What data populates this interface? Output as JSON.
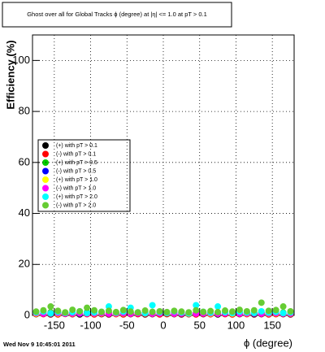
{
  "chart_data": {
    "type": "scatter",
    "title": "Ghost over all for Global Tracks ϕ (degree) at |η| <= 1.0 at pT > 0.1",
    "xlabel": "ϕ (degree)",
    "ylabel": "Efficiency (%)",
    "timestamp": "Wed Nov  9 10:45:01 2011",
    "x": [
      -175,
      -165,
      -155,
      -145,
      -135,
      -125,
      -115,
      -105,
      -95,
      -85,
      -75,
      -65,
      -55,
      -45,
      -35,
      -25,
      -15,
      -5,
      5,
      15,
      25,
      35,
      45,
      55,
      65,
      75,
      85,
      95,
      105,
      115,
      125,
      135,
      145,
      155,
      165,
      175
    ],
    "xlim": [
      -180,
      180
    ],
    "xticks": [
      -150,
      -100,
      -50,
      0,
      50,
      100,
      150
    ],
    "ylim": [
      0,
      110
    ],
    "yticks": [
      0,
      20,
      40,
      60,
      80,
      100
    ],
    "grid": true,
    "series": [
      {
        "name": "(+) with pT > 0.1",
        "color": "#000000",
        "values": [
          0.5,
          0.6,
          0.4,
          0.5,
          0.6,
          0.5,
          0.4,
          0.6,
          0.5,
          0.5,
          0.4,
          0.6,
          0.5,
          0.5,
          0.6,
          0.4,
          0.5,
          0.5,
          0.6,
          0.5,
          0.4,
          0.5,
          0.6,
          0.5,
          0.5,
          0.4,
          0.6,
          0.5,
          0.5,
          0.6,
          0.4,
          0.5,
          0.5,
          0.6,
          0.5,
          0.4
        ]
      },
      {
        "name": "(-) with pT > 0.1",
        "color": "#ff0000",
        "values": [
          0.6,
          0.5,
          0.5,
          0.4,
          0.6,
          0.5,
          0.6,
          0.5,
          0.4,
          0.6,
          0.5,
          0.5,
          0.4,
          0.6,
          0.5,
          0.5,
          0.6,
          0.4,
          0.5,
          0.6,
          0.5,
          0.5,
          0.4,
          0.6,
          0.5,
          0.6,
          0.5,
          0.4,
          0.6,
          0.5,
          0.5,
          0.6,
          0.4,
          0.5,
          0.6,
          0.5
        ]
      },
      {
        "name": "(+) with pT > 0.5",
        "color": "#00cc00",
        "values": [
          1.0,
          0.8,
          1.2,
          0.9,
          1.0,
          1.1,
          0.8,
          1.2,
          1.0,
          0.9,
          1.1,
          1.0,
          0.8,
          1.2,
          1.0,
          0.9,
          1.1,
          1.0,
          0.8,
          1.0,
          1.2,
          0.9,
          1.0,
          1.1,
          0.8,
          1.0,
          1.2,
          0.9,
          1.0,
          1.1,
          0.8,
          1.2,
          1.0,
          0.9,
          1.1,
          1.0
        ]
      },
      {
        "name": "(-) with pT > 0.5",
        "color": "#0000ff",
        "values": [
          0.8,
          0.9,
          0.7,
          0.8,
          0.9,
          0.8,
          0.7,
          0.9,
          0.8,
          0.8,
          0.7,
          0.9,
          0.8,
          0.8,
          0.9,
          0.7,
          0.8,
          0.8,
          0.9,
          0.8,
          0.7,
          0.8,
          0.9,
          0.8,
          0.8,
          0.7,
          0.9,
          0.8,
          0.8,
          0.9,
          0.7,
          0.8,
          0.8,
          0.9,
          0.8,
          0.7
        ]
      },
      {
        "name": "(+) with pT > 1.0",
        "color": "#ffff00",
        "values": [
          0.7,
          0.8,
          0.9,
          0.7,
          0.8,
          0.7,
          0.9,
          0.8,
          0.7,
          0.8,
          0.9,
          0.7,
          0.8,
          0.7,
          0.9,
          0.8,
          0.7,
          0.8,
          0.9,
          0.7,
          0.8,
          0.7,
          0.9,
          0.8,
          0.7,
          0.8,
          0.9,
          0.7,
          0.8,
          0.7,
          0.9,
          0.8,
          0.7,
          0.8,
          0.9,
          0.7
        ]
      },
      {
        "name": "(-) with pT > 1.0",
        "color": "#ff00ff",
        "values": [
          0.9,
          0.7,
          0.8,
          0.9,
          0.7,
          0.8,
          0.9,
          0.7,
          0.8,
          0.9,
          0.7,
          0.8,
          0.9,
          0.7,
          0.8,
          0.9,
          0.7,
          0.8,
          0.9,
          0.7,
          0.8,
          0.9,
          0.7,
          0.8,
          0.9,
          0.7,
          0.8,
          0.9,
          0.7,
          0.8,
          0.9,
          0.7,
          0.8,
          0.9,
          0.7,
          0.8
        ]
      },
      {
        "name": "(+) with pT > 2.0",
        "color": "#00ffff",
        "values": [
          1.2,
          1.5,
          0.8,
          1.4,
          1.0,
          1.3,
          1.6,
          0.9,
          1.2,
          1.4,
          3.5,
          1.1,
          1.5,
          3.0,
          1.2,
          0.9,
          4.0,
          1.3,
          1.0,
          1.6,
          1.2,
          0.8,
          4.0,
          1.4,
          1.1,
          3.5,
          1.3,
          0.9,
          1.5,
          1.2,
          1.0,
          1.6,
          1.1,
          1.4,
          0.9,
          1.2
        ]
      },
      {
        "name": "(-) with pT > 2.0",
        "color": "#66cc33",
        "values": [
          1.5,
          2.0,
          3.5,
          1.8,
          1.2,
          2.2,
          1.6,
          3.0,
          2.0,
          1.4,
          1.8,
          1.3,
          2.1,
          1.5,
          1.2,
          1.9,
          1.4,
          1.6,
          1.3,
          1.8,
          1.5,
          1.2,
          2.0,
          1.4,
          1.7,
          1.3,
          1.9,
          1.5,
          2.2,
          1.6,
          2.0,
          5.0,
          1.8,
          2.1,
          3.5,
          1.6
        ]
      }
    ]
  }
}
